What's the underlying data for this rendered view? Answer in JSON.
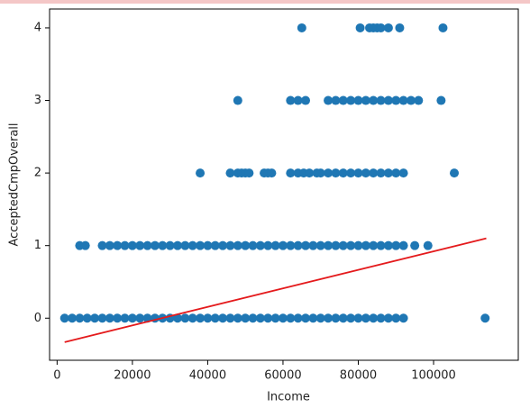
{
  "chart_data": {
    "type": "scatter",
    "xlabel": "Income",
    "ylabel": "AcceptedCmpOverall",
    "xlim": [
      -2000,
      122500
    ],
    "ylim": [
      -0.58,
      4.26
    ],
    "xticks": [
      0,
      20000,
      40000,
      60000,
      80000,
      100000
    ],
    "yticks": [
      0,
      1,
      2,
      3,
      4
    ],
    "series": [
      {
        "type": "scatter",
        "color": "#1f77b4",
        "x": [
          2000,
          4000,
          6000,
          8000,
          10000,
          12000,
          14000,
          16000,
          18000,
          20000,
          22000,
          24000,
          26000,
          28000,
          30000,
          32000,
          34000,
          36000,
          38000,
          40000,
          42000,
          44000,
          46000,
          48000,
          50000,
          52000,
          54000,
          56000,
          58000,
          60000,
          62000,
          64000,
          66000,
          68000,
          70000,
          72000,
          74000,
          76000,
          78000,
          80000,
          82000,
          84000,
          86000,
          88000,
          90000,
          92000,
          113700
        ],
        "values": [
          0,
          0,
          0,
          0,
          0,
          0,
          0,
          0,
          0,
          0,
          0,
          0,
          0,
          0,
          0,
          0,
          0,
          0,
          0,
          0,
          0,
          0,
          0,
          0,
          0,
          0,
          0,
          0,
          0,
          0,
          0,
          0,
          0,
          0,
          0,
          0,
          0,
          0,
          0,
          0,
          0,
          0,
          0,
          0,
          0,
          0,
          0
        ]
      },
      {
        "type": "scatter",
        "color": "#1f77b4",
        "x": [
          6000,
          7500,
          12000,
          14000,
          16000,
          18000,
          20000,
          22000,
          24000,
          26000,
          28000,
          30000,
          32000,
          34000,
          36000,
          38000,
          40000,
          42000,
          44000,
          46000,
          48000,
          50000,
          52000,
          54000,
          56000,
          58000,
          60000,
          62000,
          64000,
          66000,
          68000,
          70000,
          72000,
          74000,
          76000,
          78000,
          80000,
          82000,
          84000,
          86000,
          88000,
          90000,
          92000,
          95000,
          98500
        ],
        "values": [
          1,
          1,
          1,
          1,
          1,
          1,
          1,
          1,
          1,
          1,
          1,
          1,
          1,
          1,
          1,
          1,
          1,
          1,
          1,
          1,
          1,
          1,
          1,
          1,
          1,
          1,
          1,
          1,
          1,
          1,
          1,
          1,
          1,
          1,
          1,
          1,
          1,
          1,
          1,
          1,
          1,
          1,
          1,
          1,
          1
        ]
      },
      {
        "type": "scatter",
        "color": "#1f77b4",
        "x": [
          38000,
          46000,
          48000,
          49000,
          50000,
          51000,
          55000,
          56000,
          57000,
          62000,
          64000,
          65500,
          67000,
          69000,
          70000,
          72000,
          74000,
          76000,
          78000,
          80000,
          82000,
          84000,
          86000,
          88000,
          90000,
          92000,
          105500
        ],
        "values": [
          2,
          2,
          2,
          2,
          2,
          2,
          2,
          2,
          2,
          2,
          2,
          2,
          2,
          2,
          2,
          2,
          2,
          2,
          2,
          2,
          2,
          2,
          2,
          2,
          2,
          2,
          2
        ]
      },
      {
        "type": "scatter",
        "color": "#1f77b4",
        "x": [
          48000,
          62000,
          64000,
          66000,
          72000,
          74000,
          76000,
          78000,
          80000,
          82000,
          84000,
          86000,
          88000,
          90000,
          92000,
          94000,
          96000,
          102000
        ],
        "values": [
          3,
          3,
          3,
          3,
          3,
          3,
          3,
          3,
          3,
          3,
          3,
          3,
          3,
          3,
          3,
          3,
          3,
          3
        ]
      },
      {
        "type": "scatter",
        "color": "#1f77b4",
        "x": [
          65000,
          80500,
          83000,
          84000,
          85000,
          86000,
          88000,
          91000,
          102500
        ],
        "values": [
          4,
          4,
          4,
          4,
          4,
          4,
          4,
          4,
          4
        ]
      },
      {
        "type": "line",
        "color": "#e41a1c",
        "x": [
          2000,
          114000
        ],
        "values": [
          -0.33,
          1.1
        ]
      }
    ]
  }
}
